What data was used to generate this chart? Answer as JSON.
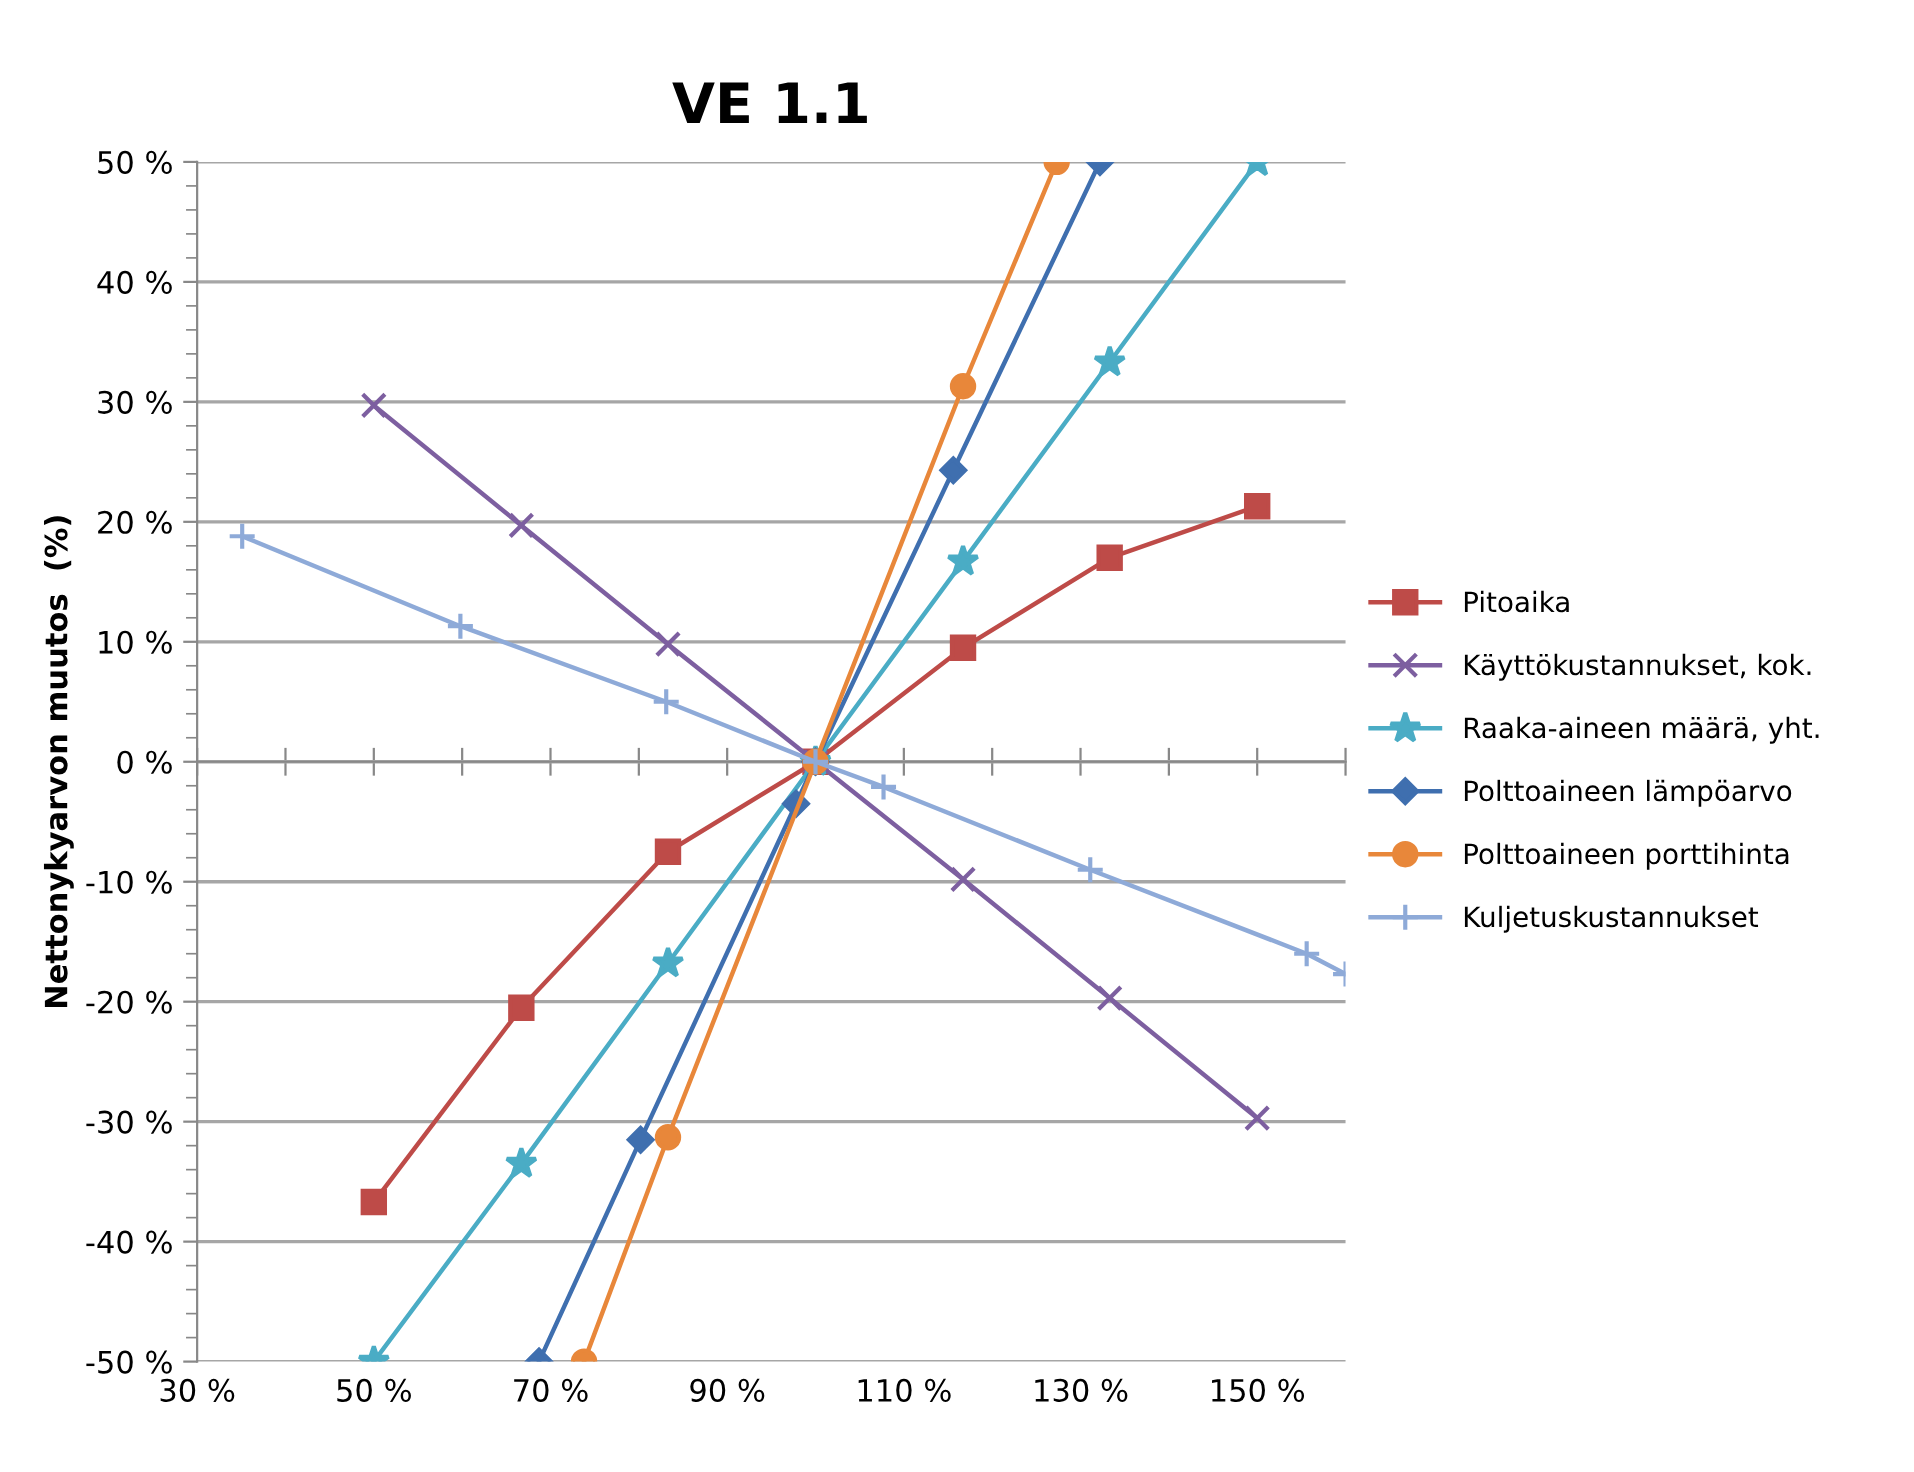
{
  "chart_data": {
    "type": "line",
    "title": "VE 1.1",
    "ylabel": "Nettonykyarvon muutos  (%)",
    "xlim": [
      30,
      160
    ],
    "ylim": [
      -50,
      50
    ],
    "xticks": [
      {
        "value": 30,
        "label": "30 %"
      },
      {
        "value": 40,
        "label": null
      },
      {
        "value": 50,
        "label": "50 %"
      },
      {
        "value": 60,
        "label": null
      },
      {
        "value": 70,
        "label": "70 %"
      },
      {
        "value": 80,
        "label": null
      },
      {
        "value": 90,
        "label": "90 %"
      },
      {
        "value": 100,
        "label": null
      },
      {
        "value": 110,
        "label": "110 %"
      },
      {
        "value": 120,
        "label": null
      },
      {
        "value": 130,
        "label": "130 %"
      },
      {
        "value": 140,
        "label": null
      },
      {
        "value": 150,
        "label": "150 %"
      },
      {
        "value": 160,
        "label": null
      }
    ],
    "yticks": [
      {
        "value": -50,
        "label": "-50 %"
      },
      {
        "value": -40,
        "label": "-40 %"
      },
      {
        "value": -30,
        "label": "-30 %"
      },
      {
        "value": -20,
        "label": "-20 %"
      },
      {
        "value": -10,
        "label": "-10 %"
      },
      {
        "value": 0,
        "label": "0 %"
      },
      {
        "value": 10,
        "label": "10 %"
      },
      {
        "value": 20,
        "label": "20 %"
      },
      {
        "value": 30,
        "label": "30 %"
      },
      {
        "value": 40,
        "label": "40 %"
      },
      {
        "value": 50,
        "label": "50 %"
      }
    ],
    "grid": "y",
    "legend": "right",
    "series": [
      {
        "name": "Pitoaika",
        "color": "#be4b48",
        "marker": "square",
        "x": [
          50,
          66.7,
          83.3,
          100,
          116.7,
          133.3,
          150
        ],
        "values": [
          -36.7,
          -20.5,
          -7.5,
          0,
          9.5,
          17,
          21.3
        ]
      },
      {
        "name": "Käyttökustannukset, kok.",
        "color": "#7d5fa0",
        "marker": "cross",
        "x": [
          50,
          66.7,
          83.3,
          100,
          116.7,
          133.3,
          150
        ],
        "values": [
          29.7,
          19.7,
          9.8,
          0,
          -9.8,
          -19.7,
          -29.7
        ]
      },
      {
        "name": "Raaka-aineen määrä, yht.",
        "color": "#4aacc5",
        "marker": "star",
        "x": [
          50,
          66.7,
          83.3,
          100,
          116.7,
          133.3,
          150
        ],
        "values": [
          -50,
          -33.5,
          -16.8,
          0,
          16.7,
          33.3,
          50
        ]
      },
      {
        "name": "Polttoaineen lämpöarvo",
        "color": "#3f6faf",
        "marker": "diamond",
        "x": [
          68.7,
          80.2,
          97.8,
          100,
          115.6,
          132.2
        ],
        "values": [
          -50,
          -31.5,
          -3.5,
          0,
          24.3,
          50
        ]
      },
      {
        "name": "Polttoaineen porttihinta",
        "color": "#e8873a",
        "marker": "circle",
        "x": [
          73.8,
          83.3,
          100,
          116.7,
          127.3
        ],
        "values": [
          -50,
          -31.3,
          0,
          31.3,
          50
        ]
      },
      {
        "name": "Kuljetuskustannukset",
        "color": "#8eaad8",
        "marker": "plus",
        "x": [
          35.1,
          59.8,
          83.1,
          100,
          107.7,
          131.1,
          155.6,
          160
        ],
        "values": [
          18.8,
          11.3,
          5,
          0,
          -2.1,
          -9,
          -16,
          -17.7
        ]
      }
    ]
  }
}
